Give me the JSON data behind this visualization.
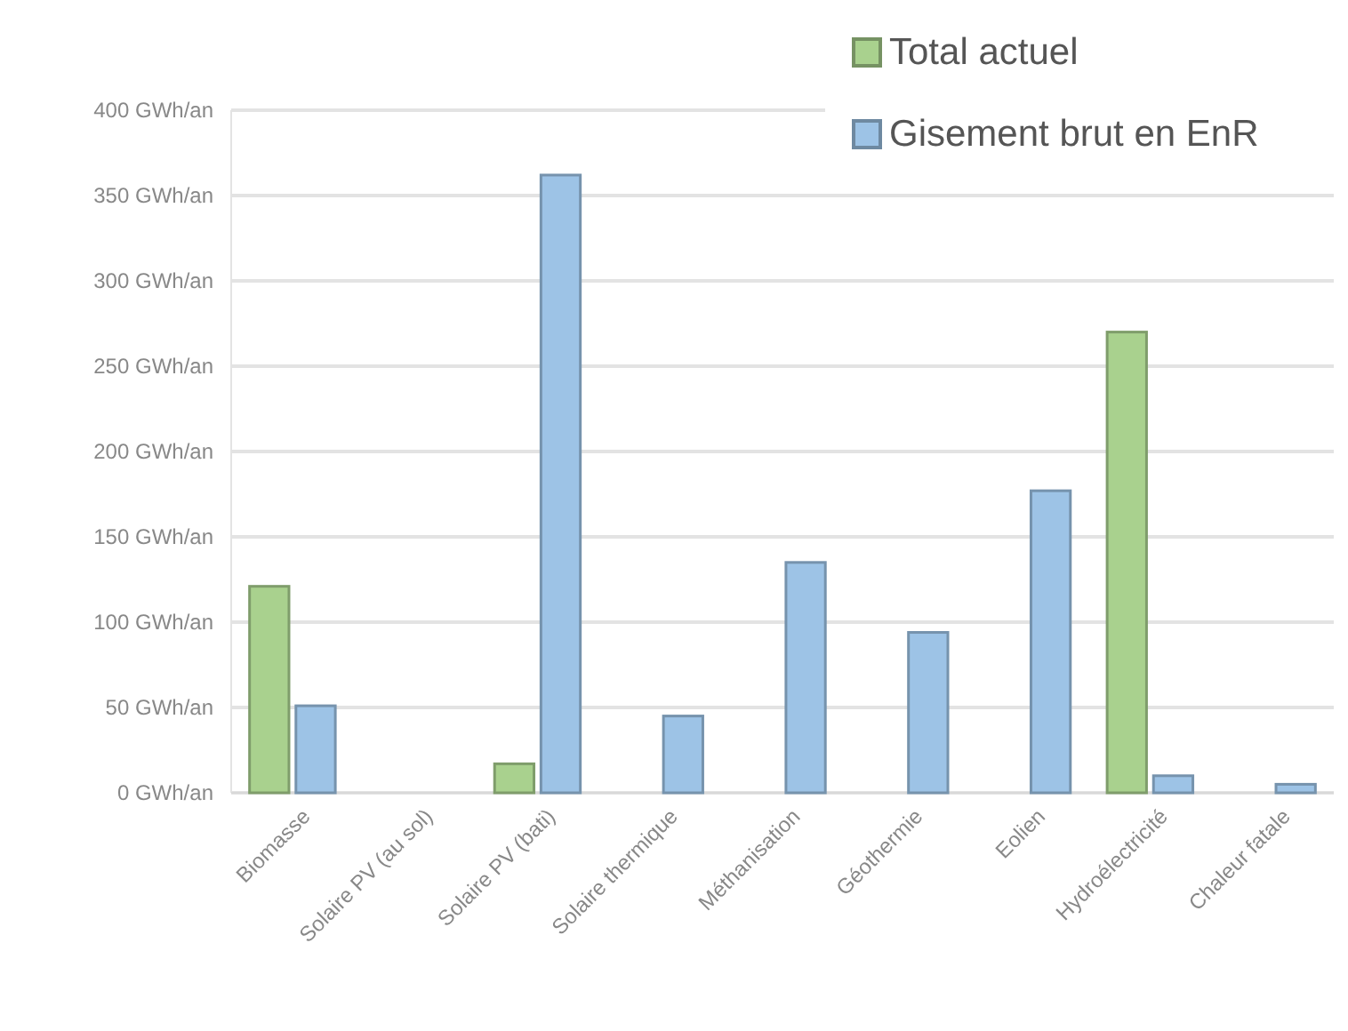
{
  "chart_data": {
    "type": "bar",
    "categories": [
      "Biomasse",
      "Solaire PV (au sol)",
      "Solaire PV (bati)",
      "Solaire thermique",
      "Méthanisation",
      "Géothermie",
      "Eolien",
      "Hydroélectricité",
      "Chaleur fatale"
    ],
    "series": [
      {
        "name": "Total actuel",
        "color": "#a9d18e",
        "values": [
          121,
          null,
          17,
          null,
          null,
          null,
          null,
          270,
          null
        ]
      },
      {
        "name": "Gisement brut en EnR",
        "color": "#9dc3e6",
        "values": [
          51,
          null,
          362,
          45,
          135,
          94,
          177,
          10,
          5
        ]
      }
    ],
    "ylim": [
      0,
      400
    ],
    "yticks": [
      {
        "value": 0,
        "label": "0 GWh/an"
      },
      {
        "value": 50,
        "label": "50 GWh/an"
      },
      {
        "value": 100,
        "label": "100 GWh/an"
      },
      {
        "value": 150,
        "label": "150 GWh/an"
      },
      {
        "value": 200,
        "label": "200 GWh/an"
      },
      {
        "value": 250,
        "label": "250 GWh/an"
      },
      {
        "value": 300,
        "label": "300 GWh/an"
      },
      {
        "value": 350,
        "label": "350 GWh/an"
      },
      {
        "value": 400,
        "label": "400 GWh/an"
      }
    ],
    "grid": "y",
    "legend": "top right"
  }
}
